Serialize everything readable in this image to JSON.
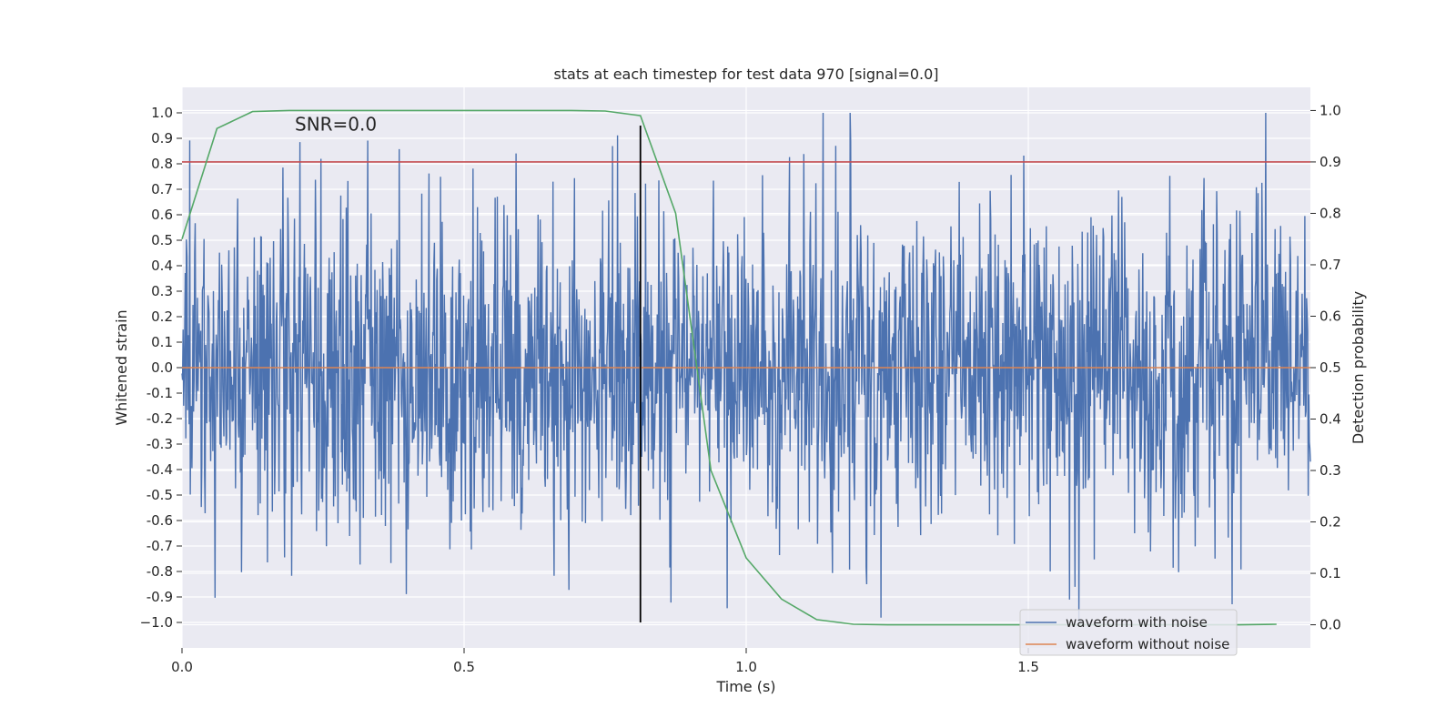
{
  "chart_data": {
    "type": "line",
    "title": "stats at each timestep for test data 970 [signal=0.0]",
    "xlabel": "Time (s)",
    "ylabel": "Whitened strain",
    "y2label": "Detection probability",
    "xlim": [
      0.0,
      2.0
    ],
    "ylim": [
      -1.1,
      1.1
    ],
    "y2lim": [
      -0.045,
      1.045
    ],
    "grid": true,
    "xticks": [
      0.0,
      0.5,
      1.0,
      1.5
    ],
    "xtick_labels": [
      "0.0",
      "0.5",
      "1.0",
      "1.5"
    ],
    "yticks": [
      1.0,
      0.9,
      0.8,
      0.7,
      0.6,
      0.5,
      0.4,
      0.3,
      0.2,
      0.1,
      0.0,
      -0.1,
      -0.2,
      -0.3,
      -0.4,
      -0.5,
      -0.6,
      -0.7,
      -0.8,
      -0.9,
      -1.0
    ],
    "ytick_labels": [
      "1.0",
      "0.9",
      "0.8",
      "0.7",
      "0.6",
      "0.5",
      "0.4",
      "0.3",
      "0.2",
      "0.1",
      "0.0",
      "-0.1",
      "-0.2",
      "-0.3",
      "-0.4",
      "-0.5",
      "-0.6",
      "-0.7",
      "-0.8",
      "-0.9",
      "−1.0"
    ],
    "y2ticks": [
      1.0,
      0.9,
      0.8,
      0.7,
      0.6,
      0.5,
      0.4,
      0.3,
      0.2,
      0.1,
      0.0
    ],
    "y2tick_labels": [
      "1.0",
      "0.9",
      "0.8",
      "0.7",
      "0.6",
      "0.5",
      "0.4",
      "0.3",
      "0.2",
      "0.1",
      "0.0"
    ],
    "annotation": "SNR=0.0",
    "annotation_pos": {
      "x": 0.2,
      "y": 0.93
    },
    "legend": {
      "position": "lower-right",
      "entries": [
        {
          "label": "waveform with noise",
          "color": "#4c72b0"
        },
        {
          "label": "waveform without noise",
          "color": "#dd8452"
        }
      ]
    },
    "noise_series": {
      "name": "waveform with noise",
      "color": "#4c72b0",
      "x_range": [
        0.0,
        2.0
      ],
      "n_points": 2048,
      "amplitude_std": 0.33,
      "clip": [
        -1.0,
        1.0
      ],
      "random_seed": 970
    },
    "series": [
      {
        "name": "waveform without noise",
        "axis": "left",
        "color": "#dd8452",
        "x": [
          0.0,
          2.0
        ],
        "y": [
          0.0,
          0.0
        ]
      },
      {
        "name": "threshold",
        "axis": "right",
        "color": "#c44e52",
        "x": [
          0.0,
          2.0
        ],
        "y": [
          0.9,
          0.9
        ]
      },
      {
        "name": "detection probability",
        "axis": "right",
        "color": "#55a868",
        "x": [
          0.0,
          0.062,
          0.125,
          0.19,
          0.25,
          0.31,
          0.375,
          0.44,
          0.5,
          0.56,
          0.625,
          0.69,
          0.75,
          0.8125,
          0.875,
          0.9375,
          1.0,
          1.0625,
          1.125,
          1.19,
          1.25,
          1.3125,
          1.375,
          1.44,
          1.5,
          1.5625,
          1.625,
          1.6875,
          1.75,
          1.8125,
          1.875,
          1.94
        ],
        "y": [
          0.75,
          0.965,
          0.998,
          1.0,
          1.0,
          1.0,
          1.0,
          1.0,
          1.0,
          1.0,
          1.0,
          1.0,
          0.999,
          0.99,
          0.8,
          0.3,
          0.13,
          0.05,
          0.01,
          0.001,
          0.0,
          0.0,
          0.0,
          0.0,
          0.0,
          0.0,
          0.0,
          0.0,
          0.0,
          0.0,
          0.0,
          0.001
        ]
      }
    ],
    "vline": {
      "x": 0.8125,
      "color": "#000000",
      "ymin": -1.0,
      "ymax": 0.95
    }
  }
}
